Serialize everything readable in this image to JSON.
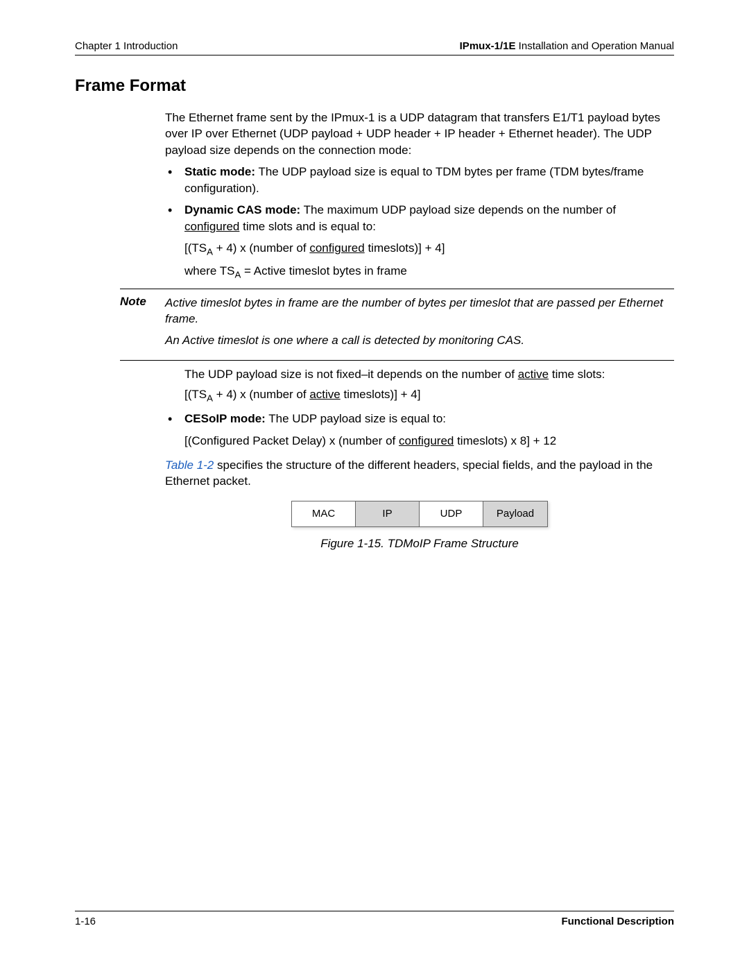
{
  "header": {
    "chapter": "Chapter 1  Introduction",
    "manual_bold": "IPmux-1/1E",
    "manual_rest": " Installation and Operation Manual"
  },
  "section_title": "Frame Format",
  "intro_para": "The Ethernet frame sent by the IPmux-1 is a UDP datagram that transfers E1/T1 payload bytes over IP over Ethernet (UDP payload + UDP header + IP header + Ethernet header). The UDP payload size depends on the connection mode:",
  "bullets": {
    "static": {
      "label": "Static mode:",
      "text": " The UDP payload size is equal to TDM bytes per frame (TDM bytes/frame configuration)."
    },
    "dynamic": {
      "label": "Dynamic CAS mode:",
      "text_pre": " The maximum UDP payload size depends on the number of ",
      "underlined1": "configured",
      "text_post": " time slots and is equal to:",
      "formula_pre": "[(TS",
      "formula_sub": "A",
      "formula_mid": " + 4) x (number of ",
      "formula_u": "configured",
      "formula_end": " timeslots)]  +  4]",
      "where_pre": "where TS",
      "where_sub": "A",
      "where_post": " = Active timeslot bytes in frame"
    },
    "cesoip": {
      "label": "CESoIP mode:",
      "text": " The UDP payload size is equal to:",
      "formula_pre": "[(Configured Packet Delay) x (number of ",
      "formula_u": "configured",
      "formula_end": " timeslots) x 8]  +  12"
    }
  },
  "note": {
    "label": "Note",
    "line1": "Active timeslot bytes in frame are the number of bytes per timeslot that are passed per Ethernet frame.",
    "line2": "An Active timeslot is one where a call is detected by monitoring CAS."
  },
  "after_note": {
    "p_pre": "The UDP payload size is not fixed–it depends on the number of ",
    "p_u": "active",
    "p_post": " time slots:",
    "formula_pre": "[(TS",
    "formula_sub": "A",
    "formula_mid": " + 4) x (number of ",
    "formula_u": "active",
    "formula_end": " timeslots)]  +  4]"
  },
  "table_ref_text": "Table 1-2",
  "closing_para": " specifies the structure of the different headers, special fields, and the payload in the Ethernet packet.",
  "figure": {
    "cells": [
      "MAC",
      "IP",
      "UDP",
      "Payload"
    ],
    "widths": [
      92,
      92,
      92,
      92
    ],
    "bg_colors": [
      "#ffffff",
      "#d5d5d5",
      "#ffffff",
      "#d5d5d5"
    ],
    "caption": "Figure 1-15.  TDMoIP Frame Structure"
  },
  "footer": {
    "left": "1-16",
    "right": "Functional Description"
  }
}
